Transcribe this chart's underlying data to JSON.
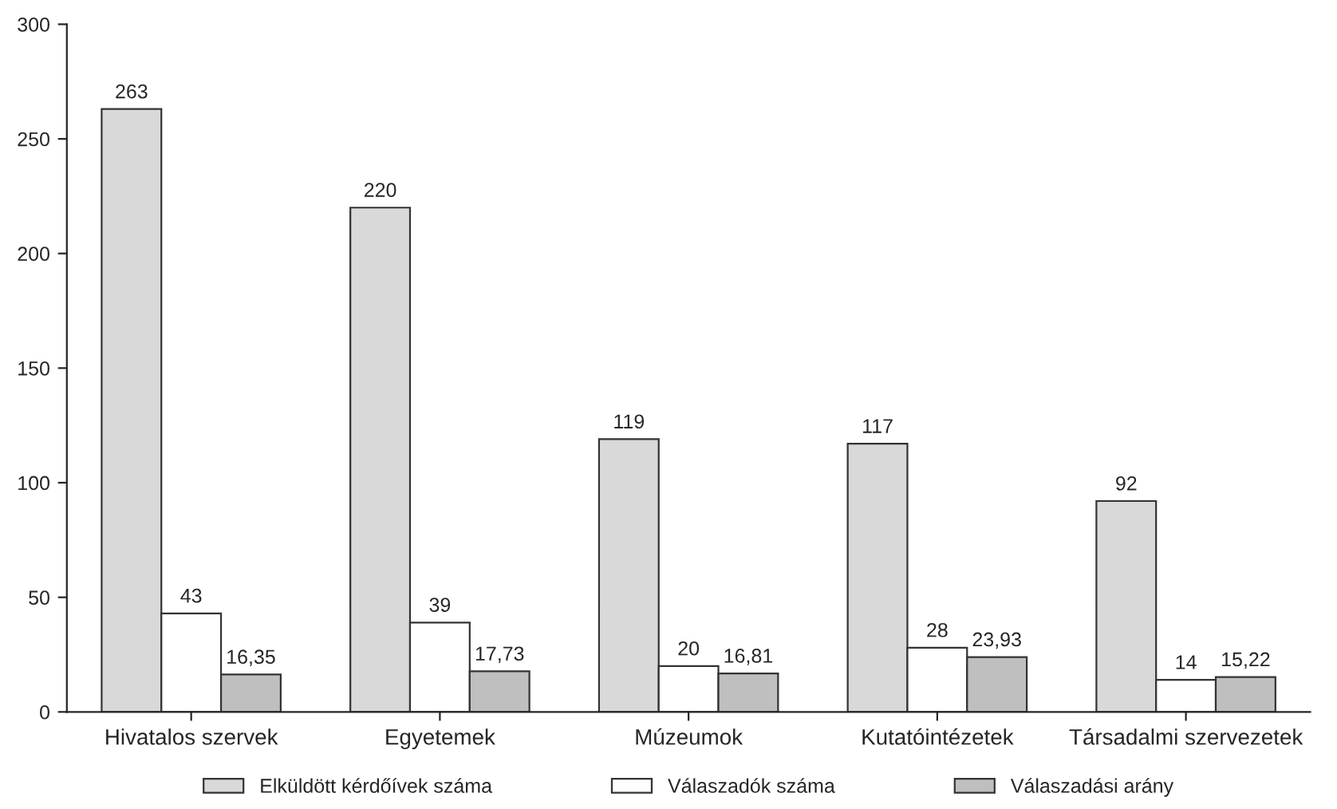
{
  "chart_data": {
    "type": "bar",
    "categories": [
      "Hivatalos szervek",
      "Egyetemek",
      "Múzeumok",
      "Kutatóintézetek",
      "Társadalmi szervezetek"
    ],
    "series": [
      {
        "name": "Elküldött kérdőívek száma",
        "color": "#d9d9d9",
        "values": [
          263,
          220,
          119,
          117,
          92
        ],
        "value_labels": [
          "263",
          "220",
          "119",
          "117",
          "92"
        ]
      },
      {
        "name": "Válaszadók száma",
        "color": "#ffffff",
        "values": [
          43,
          39,
          20,
          28,
          14
        ],
        "value_labels": [
          "43",
          "39",
          "20",
          "28",
          "14"
        ]
      },
      {
        "name": "Válaszadási arány",
        "color": "#bfbfbf",
        "values": [
          16.35,
          17.73,
          16.81,
          23.93,
          15.22
        ],
        "value_labels": [
          "16,35",
          "17,73",
          "16,81",
          "23,93",
          "15,22"
        ]
      }
    ],
    "ylim": [
      0,
      300
    ],
    "yticks": [
      0,
      50,
      100,
      150,
      200,
      250,
      300
    ],
    "grid": false,
    "legend": "bottom"
  }
}
